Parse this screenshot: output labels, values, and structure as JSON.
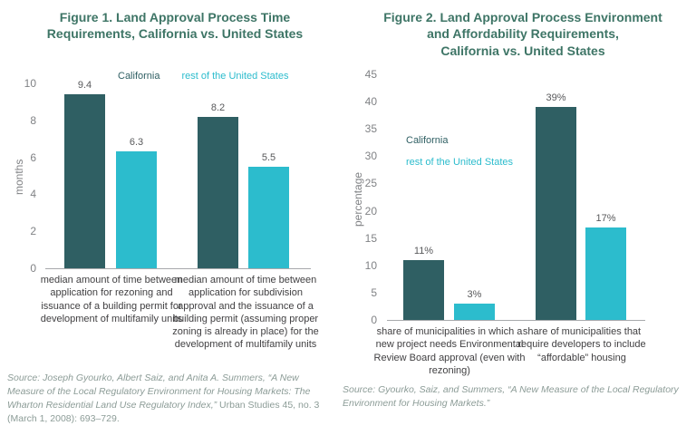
{
  "colors": {
    "california_series": "#2F5F63",
    "rest_us_series": "#2CBCCD",
    "figure_title_text": "#3E7566",
    "axis_text": "#808285",
    "value_label_text": "#58595B",
    "category_text": "#414042",
    "source_text": "#8C9C97"
  },
  "chart_data": [
    {
      "type": "bar",
      "title": "Figure 1. Land Approval Process Time Requirements, California vs. United States",
      "title_lines": "Figure 1. Land Approval Process Time\nRequirements, California vs. United States",
      "ylabel": "months",
      "xlabel": "",
      "ylim": [
        0,
        10
      ],
      "yticks": [
        0,
        2,
        4,
        6,
        8,
        10
      ],
      "grid": false,
      "legend_position": "top",
      "categories": [
        "median amount of time between application for rezoning and issuance of a building permit for development of multifamily units",
        "median amount of time between application for subdivision approval and the issuance of a building permit (assuming proper zoning is already in place) for the development of multifamily units"
      ],
      "series": [
        {
          "name": "California",
          "values": [
            9.4,
            8.2
          ],
          "labels": [
            "9.4",
            "8.2"
          ],
          "color": "#2F5F63"
        },
        {
          "name": "rest of the United States",
          "values": [
            6.3,
            5.5
          ],
          "labels": [
            "6.3",
            "5.5"
          ],
          "color": "#2CBCCD"
        }
      ],
      "source_italic": "Source: Joseph Gyourko, Albert Saiz, and Anita A. Summers, “A New Measure of the Local Regulatory Environment for Housing Markets: The Wharton Residential Land Use Regulatory Index,” ",
      "source_roman": "Urban Studies 45, no. 3 (March 1, 2008): 693–729."
    },
    {
      "type": "bar",
      "title": "Figure 2. Land Approval Process Environment and Affordability Requirements, California vs. United States",
      "title_lines": "Figure 2. Land Approval Process Environment\nand Affordability Requirements,\nCalifornia vs. United States",
      "ylabel": "percentage",
      "xlabel": "",
      "ylim": [
        0,
        45
      ],
      "yticks": [
        0,
        5,
        10,
        15,
        20,
        25,
        30,
        35,
        40,
        45
      ],
      "grid": false,
      "legend_position": "inside-left",
      "categories": [
        "share of municipalities in which a new project needs Environmental Review Board approval (even with rezoning)",
        "share of municipalities that require developers to include “affordable” housing"
      ],
      "series": [
        {
          "name": "California",
          "values": [
            11,
            39
          ],
          "labels": [
            "11%",
            "39%"
          ],
          "color": "#2F5F63"
        },
        {
          "name": "rest of the United States",
          "values": [
            3,
            17
          ],
          "labels": [
            "3%",
            "17%"
          ],
          "color": "#2CBCCD"
        }
      ],
      "source_italic": "Source: Gyourko, Saiz, and Summers, “A New Measure of the Local Regulatory Environment for Housing Markets.”",
      "source_roman": ""
    }
  ]
}
